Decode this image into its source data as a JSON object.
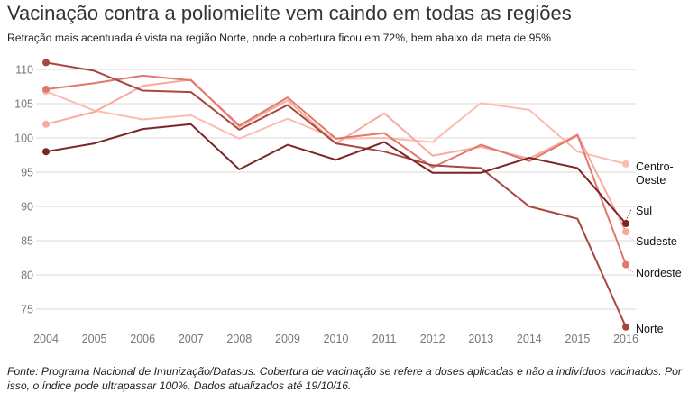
{
  "title": "Vacinação contra a poliomielite vem caindo em todas as regiões",
  "subtitle": "Retração mais acentuada é vista na região Norte, onde a cobertura ficou em 72%, bem abaixo da meta de 95%",
  "footer": "Fonte: Programa Nacional de Imunização/Datasus. Cobertura de vacinação se refere a doses aplicadas e não a indivíduos vacinados. Por isso, o índice pode ultrapassar 100%. Dados atualizados até 19/10/16.",
  "chart_data": {
    "type": "line",
    "x": [
      2004,
      2005,
      2006,
      2007,
      2008,
      2009,
      2010,
      2011,
      2012,
      2013,
      2014,
      2015,
      2016
    ],
    "x_tick_labels": [
      "2004",
      "2005",
      "2006",
      "2007",
      "2008",
      "2009",
      "2010",
      "2011",
      "2012",
      "2013",
      "2014",
      "2015",
      "2016"
    ],
    "y_ticks": [
      75,
      80,
      85,
      90,
      95,
      100,
      105,
      110
    ],
    "y_tick_labels": [
      "75",
      "80",
      "85",
      "90",
      "95",
      "100",
      "105",
      "110"
    ],
    "ylim": [
      73,
      112
    ],
    "grid": true,
    "legend": "direct labels at right end of lines",
    "series": [
      {
        "name": "Centro-Oeste",
        "label_lines": [
          "Centro-",
          "Oeste"
        ],
        "color": "#fcbcb0",
        "values": [
          106.8,
          104.0,
          102.7,
          103.3,
          99.9,
          102.8,
          99.9,
          100.0,
          99.4,
          105.1,
          104.1,
          98.0,
          96.2
        ]
      },
      {
        "name": "Sudeste",
        "label_lines": [
          "Sudeste"
        ],
        "color": "#f8aa9d",
        "values": [
          102.0,
          103.8,
          107.6,
          108.5,
          101.6,
          105.5,
          99.2,
          103.6,
          97.4,
          98.7,
          97.0,
          100.5,
          86.3
        ]
      },
      {
        "name": "Nordeste",
        "label_lines": [
          "Nordeste"
        ],
        "color": "#e0786c",
        "values": [
          107.1,
          108.0,
          109.1,
          108.4,
          101.8,
          105.9,
          99.9,
          100.7,
          95.7,
          99.0,
          96.6,
          100.4,
          81.5
        ]
      },
      {
        "name": "Norte",
        "label_lines": [
          "Norte"
        ],
        "color": "#a8473f",
        "values": [
          111.0,
          109.8,
          106.9,
          106.7,
          101.2,
          104.8,
          99.2,
          98.0,
          96.0,
          95.6,
          90.0,
          88.2,
          72.4
        ]
      },
      {
        "name": "Sul",
        "label_lines": [
          "Sul"
        ],
        "color": "#7a2626",
        "values": [
          98.0,
          99.2,
          101.3,
          102.0,
          95.4,
          99.0,
          96.8,
          99.4,
          94.9,
          94.9,
          97.1,
          95.6,
          87.5
        ]
      }
    ]
  }
}
